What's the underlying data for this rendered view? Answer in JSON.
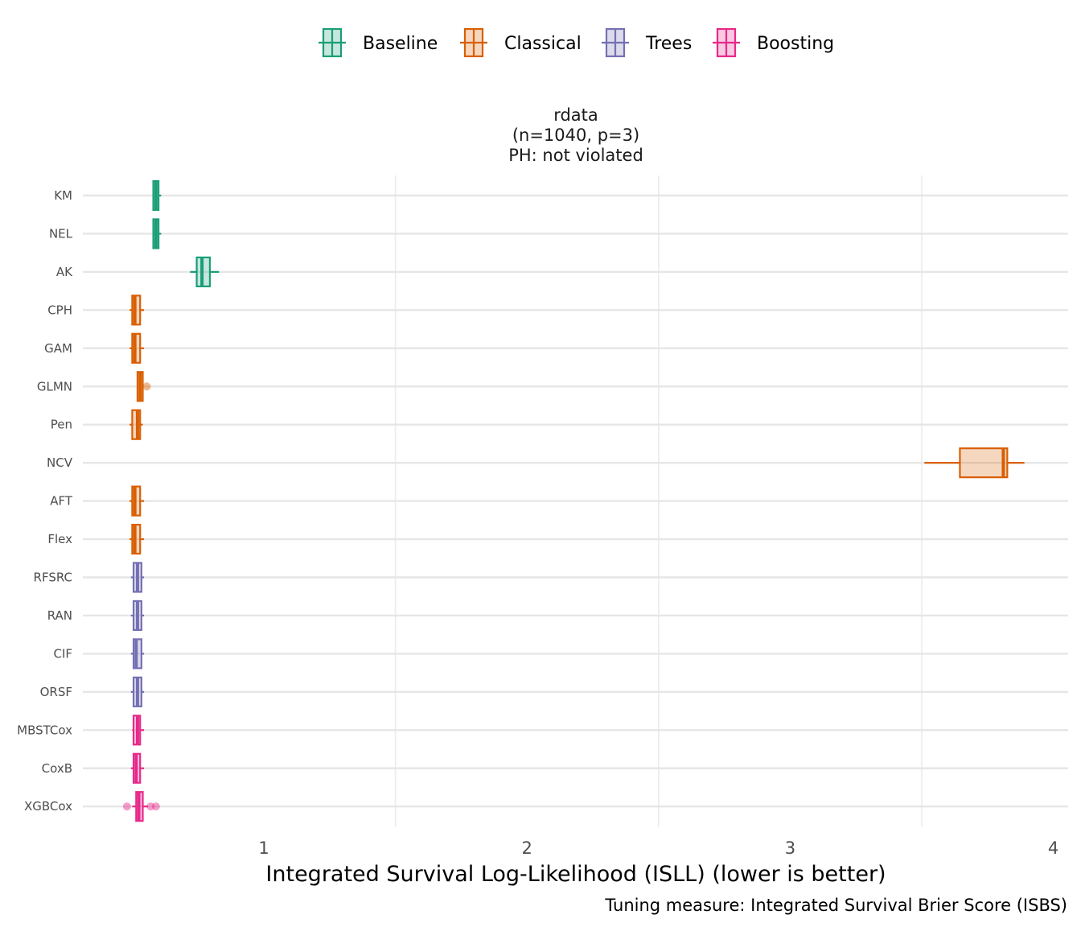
{
  "chart_data": {
    "type": "boxplot",
    "orientation": "horizontal",
    "panel_title": [
      "rdata",
      "(n=1040, p=3)",
      "PH: not violated"
    ],
    "xlabel": "Integrated Survival Log-Likelihood (ISLL) (lower is better)",
    "caption": "Tuning measure: Integrated Survival Brier Score (ISBS)",
    "xlim": [
      0.5,
      4.0
    ],
    "x_ticks": [
      1,
      2,
      3,
      4
    ],
    "x_tick_labels": [
      "1",
      "2",
      "3",
      "4"
    ],
    "grid": true,
    "legend_position": "top",
    "legend": [
      {
        "group": "Baseline",
        "color": "#1b9e77"
      },
      {
        "group": "Classical",
        "color": "#d95f02"
      },
      {
        "group": "Trees",
        "color": "#7570b3"
      },
      {
        "group": "Boosting",
        "color": "#e7298a"
      }
    ],
    "categories": [
      "KM",
      "NEL",
      "AK",
      "CPH",
      "GAM",
      "GLMN",
      "Pen",
      "NCV",
      "AFT",
      "Flex",
      "RFSRC",
      "RAN",
      "CIF",
      "ORSF",
      "MBSTCox",
      "CoxB",
      "XGBCox"
    ],
    "boxes": [
      {
        "model": "KM",
        "group": "Baseline",
        "wmin": 0.58,
        "q1": 0.58,
        "median": 0.59,
        "q3": 0.6,
        "wmax": 0.61,
        "outliers": []
      },
      {
        "model": "NEL",
        "group": "Baseline",
        "wmin": 0.58,
        "q1": 0.58,
        "median": 0.59,
        "q3": 0.6,
        "wmax": 0.61,
        "outliers": []
      },
      {
        "model": "AK",
        "group": "Baseline",
        "wmin": 0.72,
        "q1": 0.745,
        "median": 0.765,
        "q3": 0.795,
        "wmax": 0.83,
        "outliers": []
      },
      {
        "model": "CPH",
        "group": "Classical",
        "wmin": 0.49,
        "q1": 0.5,
        "median": 0.51,
        "q3": 0.53,
        "wmax": 0.545,
        "outliers": []
      },
      {
        "model": "GAM",
        "group": "Classical",
        "wmin": 0.49,
        "q1": 0.5,
        "median": 0.51,
        "q3": 0.53,
        "wmax": 0.545,
        "outliers": []
      },
      {
        "model": "GLMN",
        "group": "Classical",
        "wmin": 0.52,
        "q1": 0.52,
        "median": 0.53,
        "q3": 0.54,
        "wmax": 0.54,
        "outliers": [
          0.555
        ]
      },
      {
        "model": "Pen",
        "group": "Classical",
        "wmin": 0.49,
        "q1": 0.5,
        "median": 0.52,
        "q3": 0.53,
        "wmax": 0.54,
        "outliers": []
      },
      {
        "model": "NCV",
        "group": "Classical",
        "wmin": 3.51,
        "q1": 3.645,
        "median": 3.81,
        "q3": 3.825,
        "wmax": 3.89,
        "outliers": []
      },
      {
        "model": "AFT",
        "group": "Classical",
        "wmin": 0.49,
        "q1": 0.5,
        "median": 0.51,
        "q3": 0.53,
        "wmax": 0.545,
        "outliers": []
      },
      {
        "model": "Flex",
        "group": "Classical",
        "wmin": 0.49,
        "q1": 0.5,
        "median": 0.51,
        "q3": 0.53,
        "wmax": 0.545,
        "outliers": []
      },
      {
        "model": "RFSRC",
        "group": "Trees",
        "wmin": 0.495,
        "q1": 0.505,
        "median": 0.52,
        "q3": 0.535,
        "wmax": 0.545,
        "outliers": []
      },
      {
        "model": "RAN",
        "group": "Trees",
        "wmin": 0.495,
        "q1": 0.505,
        "median": 0.52,
        "q3": 0.535,
        "wmax": 0.545,
        "outliers": []
      },
      {
        "model": "CIF",
        "group": "Trees",
        "wmin": 0.495,
        "q1": 0.505,
        "median": 0.515,
        "q3": 0.535,
        "wmax": 0.545,
        "outliers": []
      },
      {
        "model": "ORSF",
        "group": "Trees",
        "wmin": 0.495,
        "q1": 0.505,
        "median": 0.52,
        "q3": 0.535,
        "wmax": 0.545,
        "outliers": []
      },
      {
        "model": "MBSTCox",
        "group": "Boosting",
        "wmin": 0.5,
        "q1": 0.505,
        "median": 0.52,
        "q3": 0.53,
        "wmax": 0.545,
        "outliers": []
      },
      {
        "model": "CoxB",
        "group": "Boosting",
        "wmin": 0.495,
        "q1": 0.505,
        "median": 0.515,
        "q3": 0.53,
        "wmax": 0.545,
        "outliers": []
      },
      {
        "model": "XGBCox",
        "group": "Boosting",
        "wmin": 0.5,
        "q1": 0.515,
        "median": 0.525,
        "q3": 0.54,
        "wmax": 0.56,
        "outliers": [
          0.48,
          0.57,
          0.59
        ]
      }
    ]
  }
}
